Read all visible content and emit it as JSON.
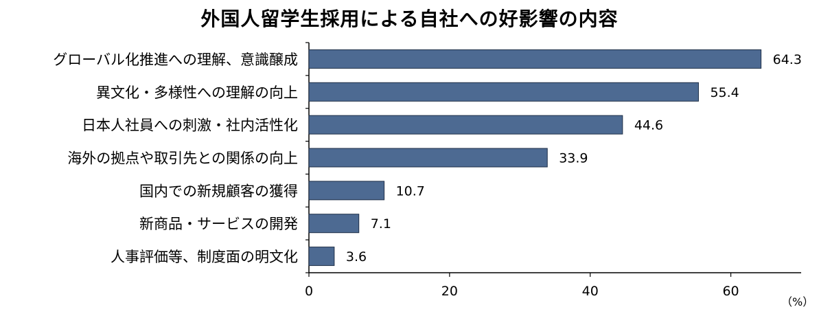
{
  "chart_data": {
    "type": "bar",
    "orientation": "horizontal",
    "title": "外国人留学生採用による自社への好影響の内容",
    "unit": "（%）",
    "categories": [
      "グローバル化推進への理解、意識醸成",
      "異文化・多様性への理解の向上",
      "日本人社員への刺激・社内活性化",
      "海外の拠点や取引先との関係の向上",
      "国内での新規顧客の獲得",
      "新商品・サービスの開発",
      "人事評価等、制度面の明文化"
    ],
    "values": [
      64.3,
      55.4,
      44.6,
      33.9,
      10.7,
      7.1,
      3.6
    ],
    "value_labels": [
      "64.3",
      "55.4",
      "44.6",
      "33.9",
      "10.7",
      "7.1",
      "3.6"
    ],
    "xlim": [
      0,
      70
    ],
    "xticks": [
      0,
      20,
      40,
      60
    ],
    "xtick_labels": [
      "0",
      "20",
      "40",
      "60"
    ],
    "grid": false,
    "legend": "none",
    "bar_color": "#4d6a92",
    "bar_edge_color": "#1f2f47"
  }
}
